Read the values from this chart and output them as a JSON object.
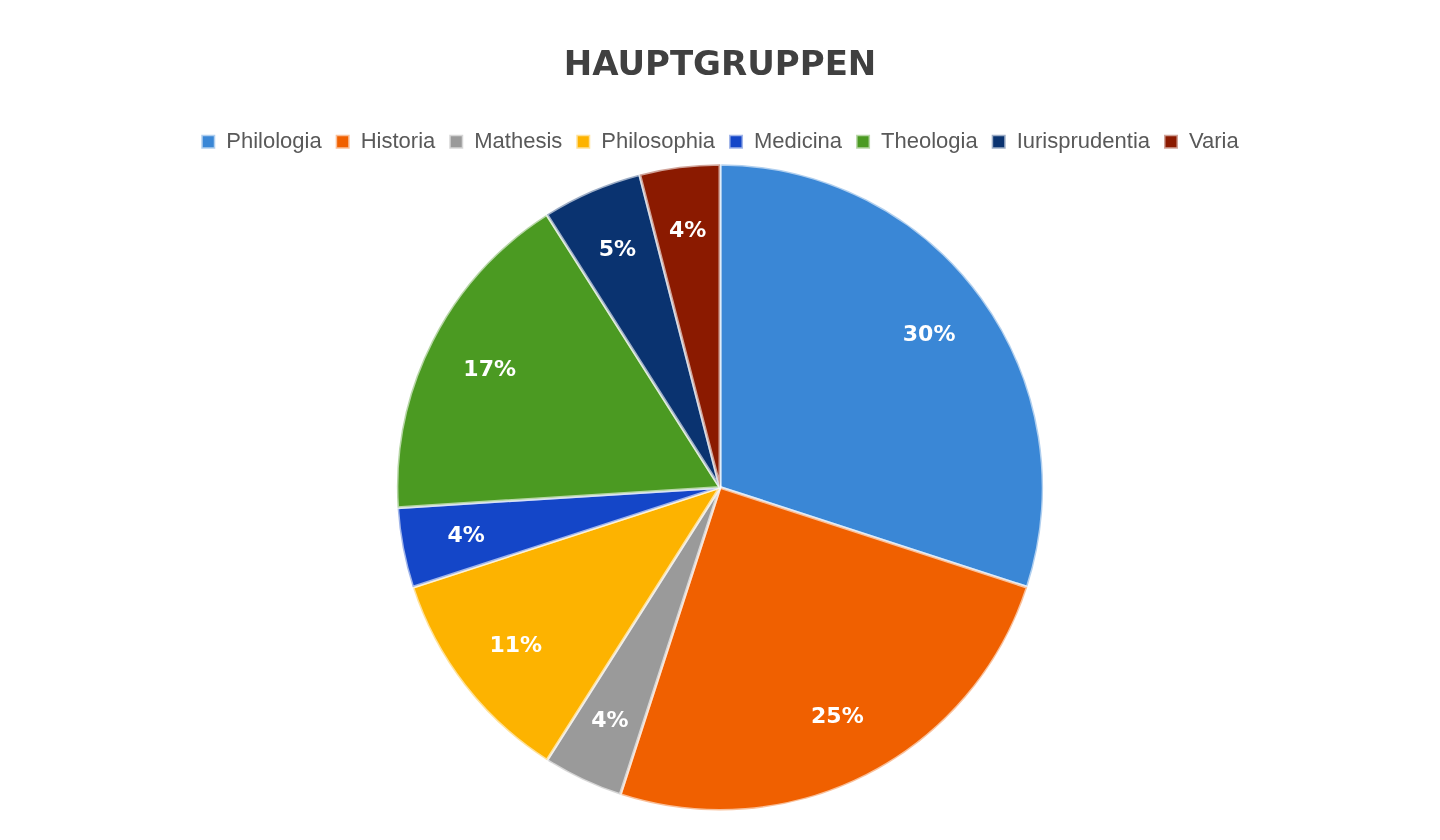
{
  "chart_data": {
    "type": "pie",
    "title": "HAUPTGRUPPEN",
    "categories": [
      "Philologia",
      "Historia",
      "Mathesis",
      "Philosophia",
      "Medicina",
      "Theologia",
      "Iurisprudentia",
      "Varia"
    ],
    "values": [
      30,
      25,
      4,
      11,
      4,
      17,
      5,
      4
    ],
    "colors": [
      "#3a87d6",
      "#f06000",
      "#9a9a9a",
      "#fdb300",
      "#1446c8",
      "#4b9a22",
      "#0a3370",
      "#8b1a00"
    ],
    "value_labels": [
      "30%",
      "25%",
      "4%",
      "11%",
      "4%",
      "17%",
      "5%",
      "4%"
    ],
    "legend": "top"
  }
}
